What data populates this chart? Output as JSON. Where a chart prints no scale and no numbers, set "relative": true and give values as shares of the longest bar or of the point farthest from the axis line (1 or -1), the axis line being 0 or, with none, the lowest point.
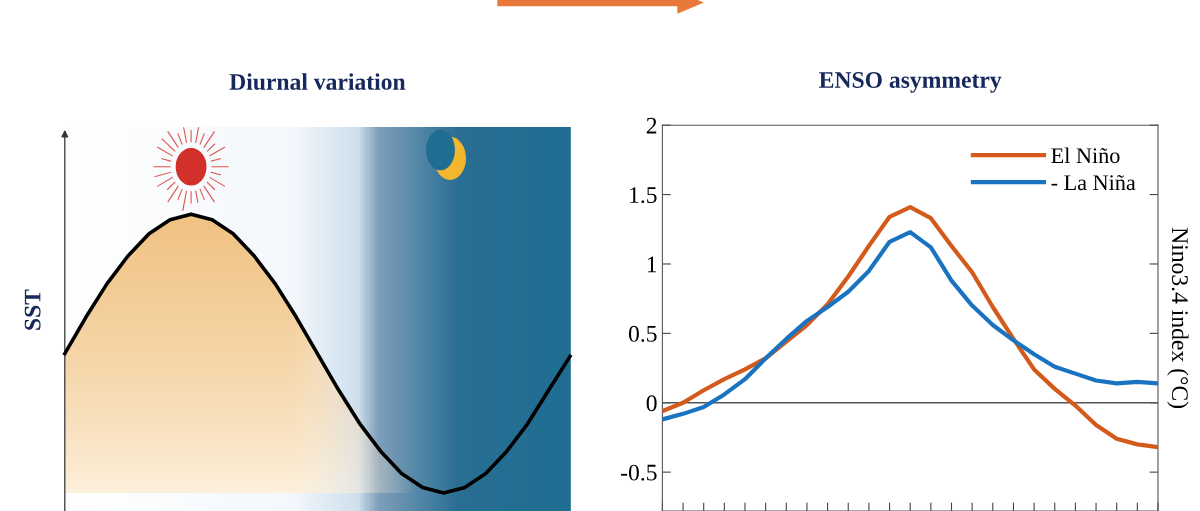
{
  "chart_data": [
    {
      "type": "line",
      "title": "Diurnal variation",
      "ylabel": "SST",
      "relative": true,
      "categories": [
        null,
        null,
        null,
        null,
        null,
        null,
        null,
        null,
        null,
        null,
        null,
        null,
        null,
        null,
        null,
        null,
        null,
        null,
        null,
        null,
        null,
        null,
        null,
        null,
        null
      ],
      "series": [
        {
          "color": "#000000",
          "values": [
            0.5,
            0.63,
            0.75,
            0.85,
            0.93,
            0.98,
            1.0,
            0.98,
            0.93,
            0.85,
            0.75,
            0.63,
            0.5,
            0.37,
            0.25,
            0.15,
            0.07,
            0.02,
            0.0,
            0.02,
            0.07,
            0.15,
            0.25,
            0.37,
            0.49
          ]
        }
      ]
    },
    {
      "type": "line",
      "title": "ENSO asymmetry",
      "ylabel": "Nino3.4 index (°C)",
      "categories": [
        null,
        null,
        null,
        null,
        null,
        null,
        null,
        null,
        null,
        null,
        null,
        null,
        null,
        null,
        null,
        null,
        null,
        null,
        null,
        null,
        null,
        null,
        null,
        null,
        null
      ],
      "ylim": [
        -0.78,
        2
      ],
      "yticks": [
        -0.5,
        0,
        0.5,
        1,
        1.5,
        2
      ],
      "tick_labels": "y",
      "legend": "top right",
      "ref_lines": [
        {
          "axis": "y",
          "value": 0,
          "color": "#555555"
        }
      ],
      "series": [
        {
          "name": "El Niño",
          "color": "#d45a1c",
          "values": [
            -0.06,
            0.0,
            0.09,
            0.17,
            0.24,
            0.32,
            0.44,
            0.56,
            0.71,
            0.91,
            1.13,
            1.34,
            1.41,
            1.33,
            1.13,
            0.94,
            0.69,
            0.46,
            0.24,
            0.1,
            -0.02,
            -0.16,
            -0.26,
            -0.3,
            -0.32
          ]
        },
        {
          "name": "- La Niña",
          "color": "#1a73c0",
          "values": [
            -0.12,
            -0.08,
            -0.03,
            0.06,
            0.17,
            0.32,
            0.46,
            0.59,
            0.69,
            0.8,
            0.95,
            1.16,
            1.23,
            1.12,
            0.88,
            0.7,
            0.56,
            0.45,
            0.35,
            0.26,
            0.21,
            0.16,
            0.14,
            0.15,
            0.14
          ]
        }
      ]
    }
  ]
}
